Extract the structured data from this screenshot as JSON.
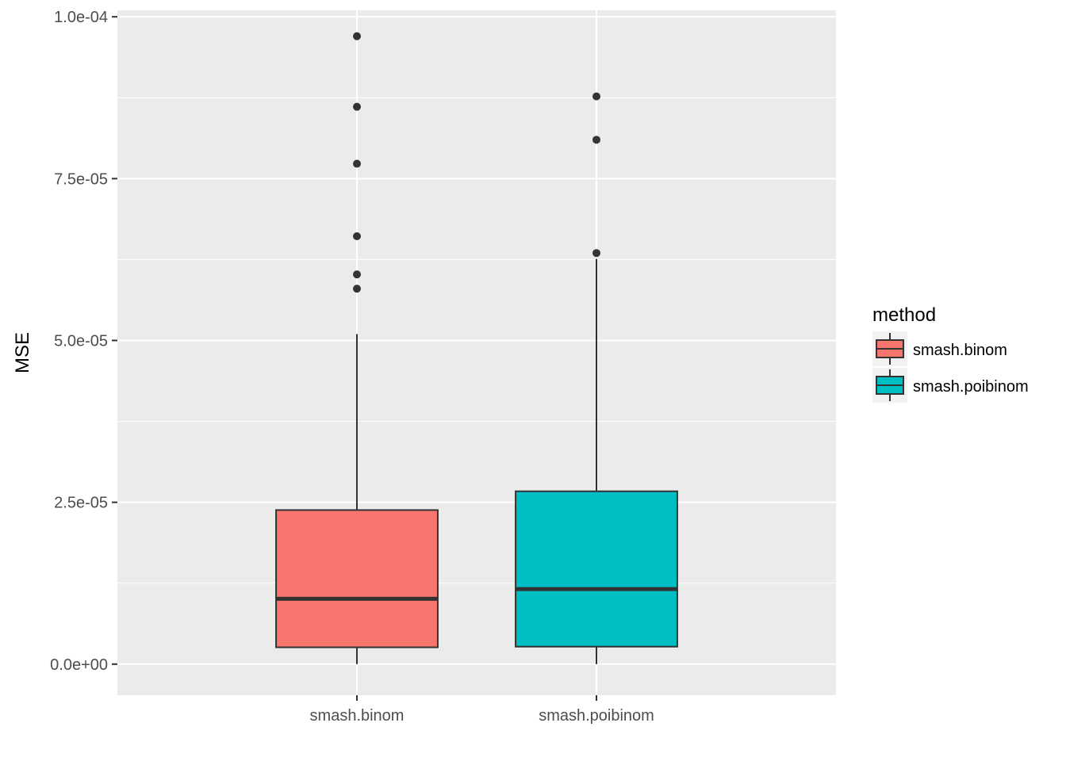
{
  "chart_data": {
    "type": "box",
    "xlabel": "",
    "ylabel": "MSE",
    "ylim": [
      -4.8e-06,
      0.000101
    ],
    "y_ticks": [
      0,
      2.5e-05,
      5e-05,
      7.5e-05,
      0.0001
    ],
    "y_tick_labels": [
      "0.0e+00",
      "2.5e-05",
      "5.0e-05",
      "7.5e-05",
      "1.0e-04"
    ],
    "categories": [
      "smash.binom",
      "smash.poibinom"
    ],
    "grid": true,
    "legend": {
      "title": "method",
      "position": "right",
      "entries": [
        {
          "label": "smash.binom",
          "color": "#F8766D"
        },
        {
          "label": "smash.poibinom",
          "color": "#00BFC4"
        }
      ]
    },
    "boxes": [
      {
        "category": "smash.binom",
        "color": "#F8766D",
        "lower_whisker": 0.0,
        "q1": 2.6e-06,
        "median": 1.01e-05,
        "q3": 2.38e-05,
        "upper_whisker": 5.1e-05,
        "outliers": [
          5.8e-05,
          6.02e-05,
          6.61e-05,
          7.73e-05,
          8.61e-05,
          9.7e-05
        ]
      },
      {
        "category": "smash.poibinom",
        "color": "#00BFC4",
        "lower_whisker": 0.0,
        "q1": 2.7e-06,
        "median": 1.16e-05,
        "q3": 2.67e-05,
        "upper_whisker": 6.26e-05,
        "outliers": [
          6.35e-05,
          8.1e-05,
          8.77e-05
        ]
      }
    ]
  }
}
